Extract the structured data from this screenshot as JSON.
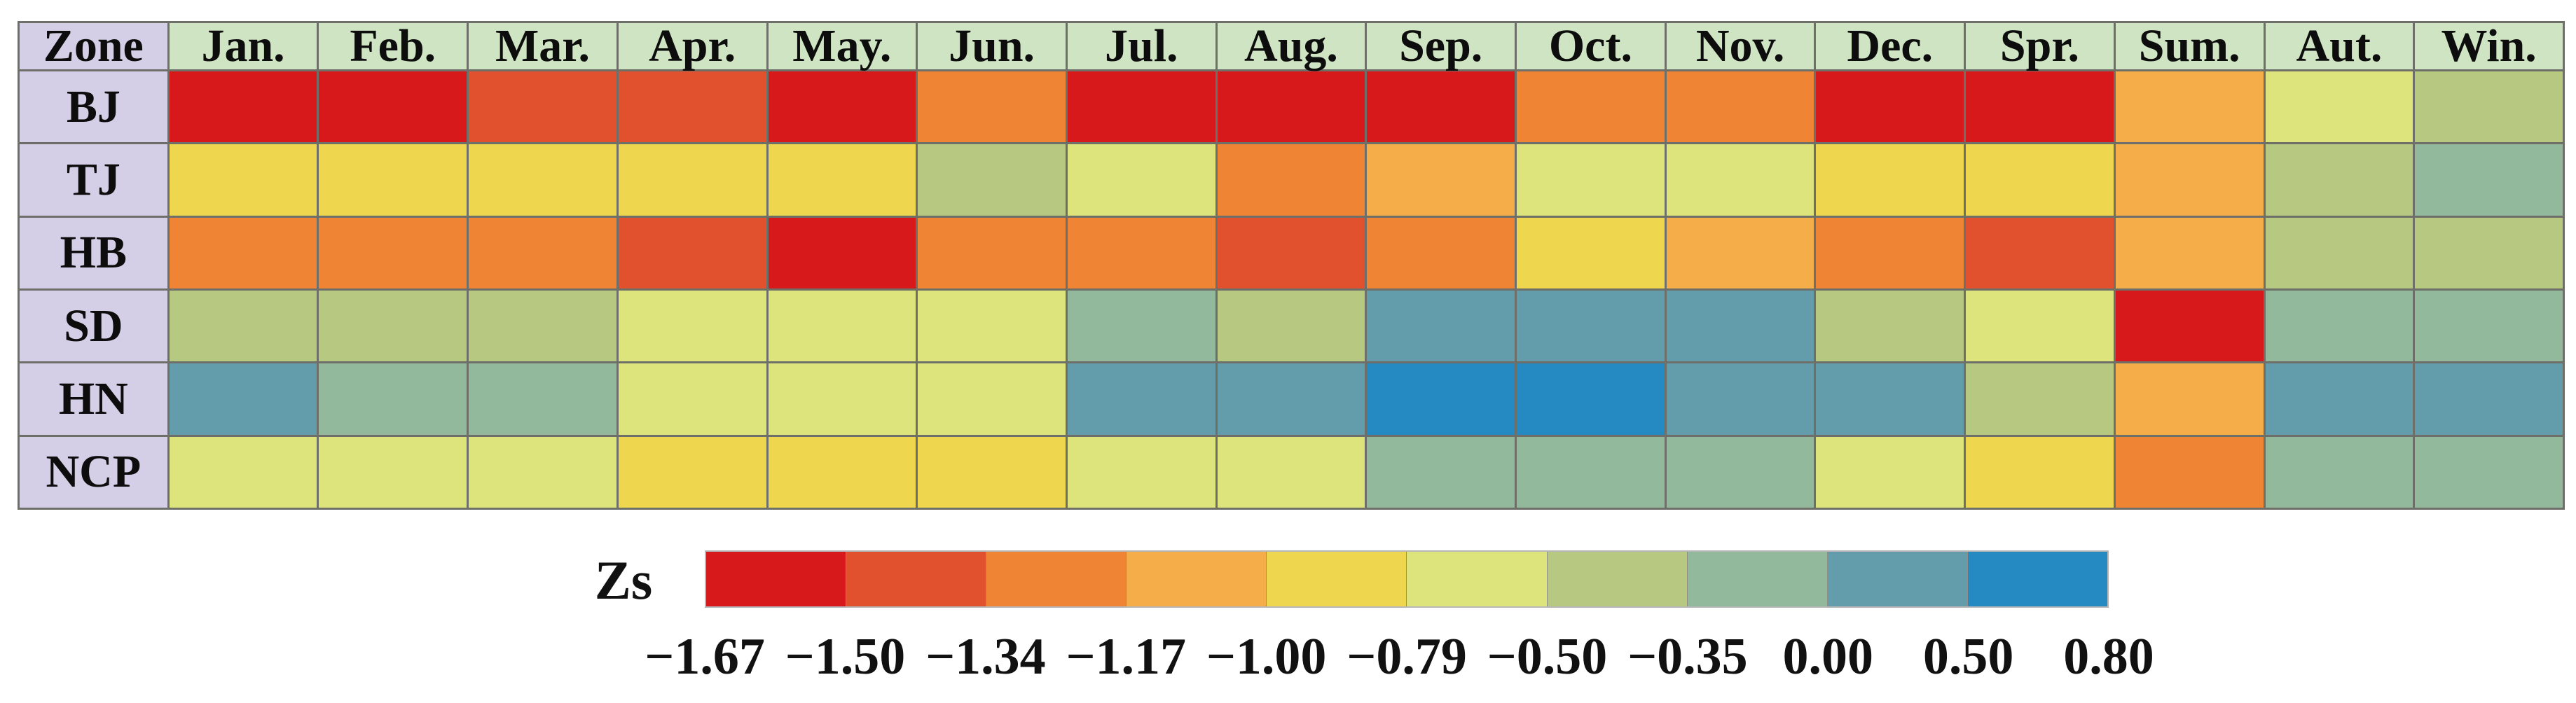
{
  "table": {
    "corner_label": "Zone",
    "columns": [
      "Jan.",
      "Feb.",
      "Mar.",
      "Apr.",
      "May.",
      "Jun.",
      "Jul.",
      "Aug.",
      "Sep.",
      "Oct.",
      "Nov.",
      "Dec.",
      "Spr.",
      "Sum.",
      "Aut.",
      "Win."
    ],
    "rows": [
      {
        "zone": "BJ",
        "bins": [
          0,
          0,
          1,
          1,
          0,
          2,
          0,
          0,
          0,
          2,
          2,
          0,
          0,
          3,
          5,
          6
        ]
      },
      {
        "zone": "TJ",
        "bins": [
          4,
          4,
          4,
          4,
          4,
          6,
          5,
          2,
          3,
          5,
          5,
          4,
          4,
          3,
          6,
          7
        ]
      },
      {
        "zone": "HB",
        "bins": [
          2,
          2,
          2,
          1,
          0,
          2,
          2,
          1,
          2,
          4,
          3,
          2,
          1,
          3,
          6,
          6
        ]
      },
      {
        "zone": "SD",
        "bins": [
          6,
          6,
          6,
          5,
          5,
          5,
          7,
          6,
          8,
          8,
          8,
          6,
          5,
          0,
          7,
          7
        ]
      },
      {
        "zone": "HN",
        "bins": [
          8,
          7,
          7,
          5,
          5,
          5,
          8,
          8,
          9,
          9,
          8,
          8,
          6,
          3,
          8,
          8
        ]
      },
      {
        "zone": "NCP",
        "bins": [
          5,
          5,
          5,
          4,
          4,
          4,
          5,
          5,
          7,
          7,
          7,
          5,
          4,
          2,
          7,
          7
        ]
      }
    ]
  },
  "legend": {
    "title": "Zs",
    "tick_labels": [
      "−1.67",
      "−1.50",
      "−1.34",
      "−1.17",
      "−1.00",
      "−0.79",
      "−0.50",
      "−0.35",
      "0.00",
      "0.50",
      "0.80"
    ]
  },
  "palette": [
    "#d7191c",
    "#e1512d",
    "#ef8435",
    "#f4ad49",
    "#eed64f",
    "#dce47b",
    "#b7c981",
    "#92b99b",
    "#639cab",
    "#2589c2"
  ],
  "colors": {
    "header_bg": "#cee4c2",
    "zone_bg": "#d4cfe6",
    "grid_border": "#6e6f68",
    "background": "#ffffff",
    "text": "#0d0d0d"
  },
  "chart_data": {
    "type": "heatmap",
    "title": "",
    "legend_title": "Zs",
    "legend_position": "bottom",
    "columns": [
      "Jan.",
      "Feb.",
      "Mar.",
      "Apr.",
      "May.",
      "Jun.",
      "Jul.",
      "Aug.",
      "Sep.",
      "Oct.",
      "Nov.",
      "Dec.",
      "Spr.",
      "Sum.",
      "Aut.",
      "Win."
    ],
    "rows": [
      "BJ",
      "TJ",
      "HB",
      "SD",
      "HN",
      "NCP"
    ],
    "bins": [
      {
        "index": 0,
        "range": [
          -1.67,
          -1.5
        ],
        "color": "#d7191c"
      },
      {
        "index": 1,
        "range": [
          -1.5,
          -1.34
        ],
        "color": "#e1512d"
      },
      {
        "index": 2,
        "range": [
          -1.34,
          -1.17
        ],
        "color": "#ef8435"
      },
      {
        "index": 3,
        "range": [
          -1.17,
          -1.0
        ],
        "color": "#f4ad49"
      },
      {
        "index": 4,
        "range": [
          -1.0,
          -0.79
        ],
        "color": "#eed64f"
      },
      {
        "index": 5,
        "range": [
          -0.79,
          -0.5
        ],
        "color": "#dce47b"
      },
      {
        "index": 6,
        "range": [
          -0.5,
          -0.35
        ],
        "color": "#b7c981"
      },
      {
        "index": 7,
        "range": [
          -0.35,
          0.0
        ],
        "color": "#92b99b"
      },
      {
        "index": 8,
        "range": [
          0.0,
          0.5
        ],
        "color": "#639cab"
      },
      {
        "index": 9,
        "range": [
          0.5,
          0.8
        ],
        "color": "#2589c2"
      }
    ],
    "cell_bin_index": [
      [
        0,
        0,
        1,
        1,
        0,
        2,
        0,
        0,
        0,
        2,
        2,
        0,
        0,
        3,
        5,
        6
      ],
      [
        4,
        4,
        4,
        4,
        4,
        6,
        5,
        2,
        3,
        5,
        5,
        4,
        4,
        3,
        6,
        7
      ],
      [
        2,
        2,
        2,
        1,
        0,
        2,
        2,
        1,
        2,
        4,
        3,
        2,
        1,
        3,
        6,
        6
      ],
      [
        6,
        6,
        6,
        5,
        5,
        5,
        7,
        6,
        8,
        8,
        8,
        6,
        5,
        0,
        7,
        7
      ],
      [
        8,
        7,
        7,
        5,
        5,
        5,
        8,
        8,
        9,
        9,
        8,
        8,
        6,
        3,
        8,
        8
      ],
      [
        5,
        5,
        5,
        4,
        4,
        4,
        5,
        5,
        7,
        7,
        7,
        5,
        4,
        2,
        7,
        7
      ]
    ],
    "legend_tick_labels": [
      "−1.67",
      "−1.50",
      "−1.34",
      "−1.17",
      "−1.00",
      "−0.79",
      "−0.50",
      "−0.35",
      "0.00",
      "0.50",
      "0.80"
    ]
  }
}
